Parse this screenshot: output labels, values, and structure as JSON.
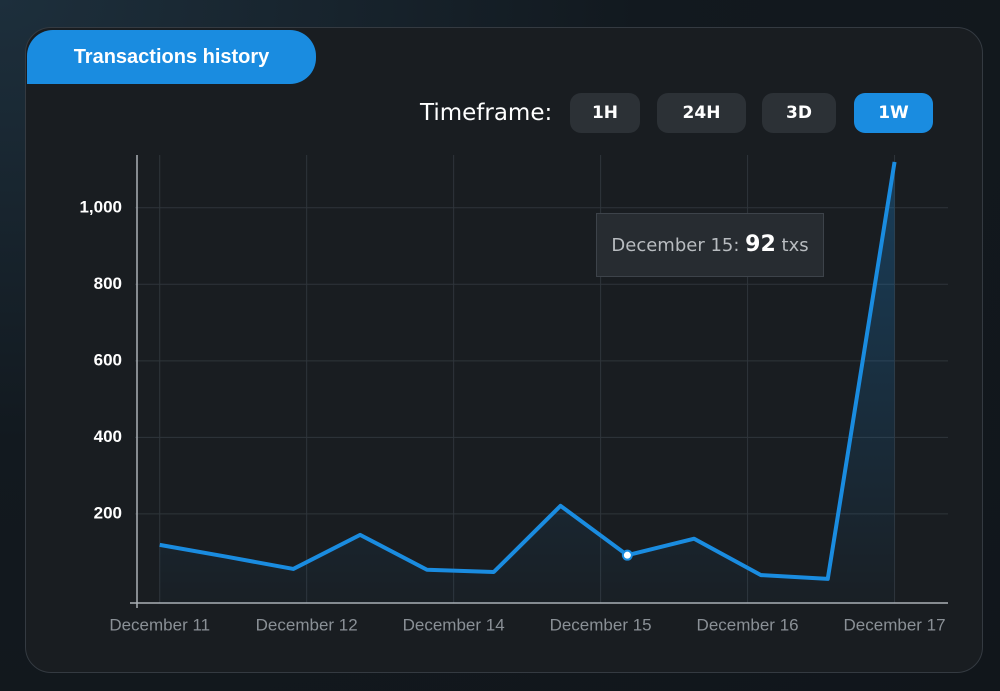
{
  "header": {
    "title": "Transactions history",
    "timeframe_label": "Timeframe:",
    "buttons": [
      {
        "label": "1H",
        "active": false
      },
      {
        "label": "24H",
        "active": false
      },
      {
        "label": "3D",
        "active": false
      },
      {
        "label": "1W",
        "active": true
      }
    ]
  },
  "chart_data": {
    "type": "line",
    "x": [
      0,
      1,
      2,
      3,
      4,
      5,
      6,
      7,
      8,
      9,
      10,
      11
    ],
    "series": [
      {
        "name": "txs",
        "color": "#1a8ce0",
        "values": [
          119,
          88,
          56,
          145,
          54,
          48,
          221,
          92,
          135,
          40,
          30,
          1120
        ]
      }
    ],
    "xlim": [
      -0.37,
      11.8
    ],
    "xticks": [
      {
        "value": 0,
        "label": "December 11"
      },
      {
        "value": 2.2,
        "label": "December 12"
      },
      {
        "value": 4.4,
        "label": "December 14"
      },
      {
        "value": 6.6,
        "label": "December 15"
      },
      {
        "value": 8.8,
        "label": "December 16"
      },
      {
        "value": 11,
        "label": "December 17"
      }
    ],
    "ylim": [
      -33,
      1138
    ],
    "yticks": [
      200,
      400,
      600,
      800,
      {
        "value": 1000,
        "label": "1,000"
      }
    ],
    "grid": true,
    "tooltip": {
      "label": "December 15:",
      "value": 92,
      "unit": "txs",
      "index": 7
    }
  }
}
